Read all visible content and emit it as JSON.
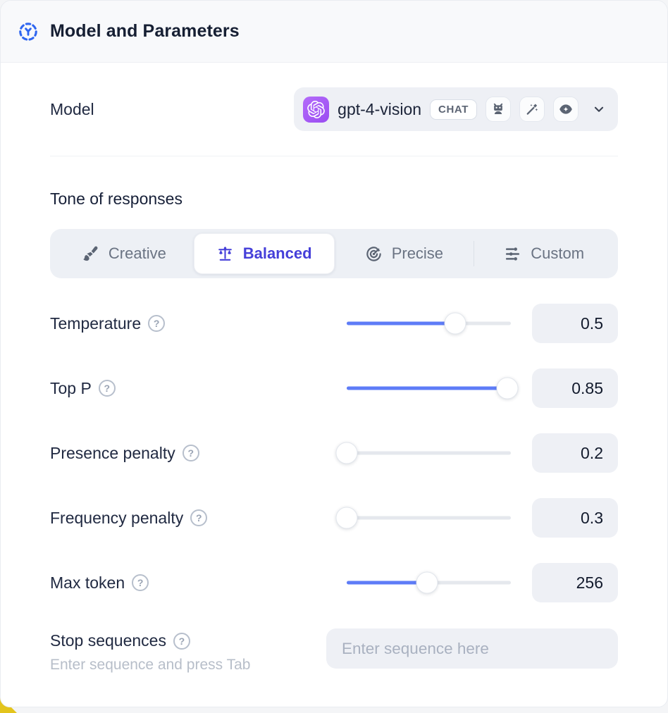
{
  "header": {
    "title": "Model and Parameters",
    "icon": "model-frame-icon"
  },
  "model_row": {
    "label": "Model",
    "selected_model": "gpt-4-vision",
    "badge": "CHAT",
    "provider_icon": "openai-logo",
    "capability_icons": [
      "robot-icon",
      "magic-wand-icon",
      "vision-eye-icon"
    ],
    "dropdown_icon": "chevron-down-icon"
  },
  "tone": {
    "heading": "Tone of responses",
    "options": [
      {
        "label": "Creative",
        "icon": "paintbrush-icon",
        "selected": false
      },
      {
        "label": "Balanced",
        "icon": "balance-scale-icon",
        "selected": true
      },
      {
        "label": "Precise",
        "icon": "target-icon",
        "selected": false
      },
      {
        "label": "Custom",
        "icon": "sliders-icon",
        "selected": false
      }
    ]
  },
  "parameters": [
    {
      "label": "Temperature",
      "value": "0.5",
      "fill_pct": 66
    },
    {
      "label": "Top P",
      "value": "0.85",
      "fill_pct": 98
    },
    {
      "label": "Presence penalty",
      "value": "0.2",
      "fill_pct": 0
    },
    {
      "label": "Frequency penalty",
      "value": "0.3",
      "fill_pct": 0
    },
    {
      "label": "Max token",
      "value": "256",
      "fill_pct": 49
    }
  ],
  "stop_sequences": {
    "label": "Stop sequences",
    "helper": "Enter sequence and press Tab",
    "placeholder": "Enter sequence here",
    "value": ""
  },
  "colors": {
    "accent_blue": "#5e7cf7",
    "selected_indigo": "#453fd9",
    "header_icon_blue": "#2f66f0",
    "provider_purple": "#9a4cf1",
    "panel_gray": "#eef0f5",
    "corner_yellow": "#e3c41d"
  }
}
